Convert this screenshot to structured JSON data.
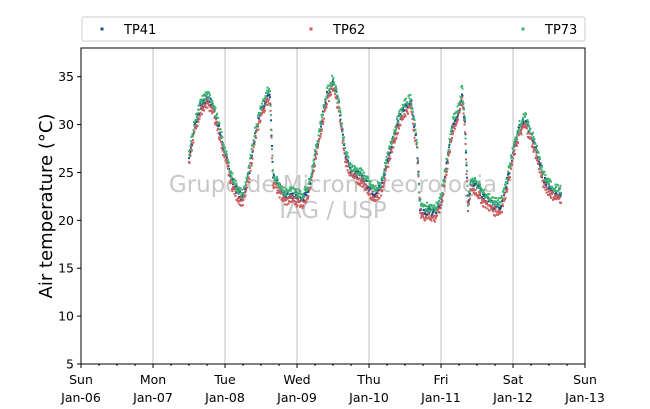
{
  "chart_data": {
    "type": "scatter",
    "title": "",
    "xlabel": "",
    "ylabel": "Air temperature (°C)",
    "ylim": [
      5,
      38
    ],
    "xlim": [
      "2019-01-06",
      "2019-01-13"
    ],
    "grid": "vertical major",
    "legend": "top, horizontal",
    "watermark": [
      "Grupo de Micrometeorologia",
      "IAG / USP"
    ],
    "xticks": [
      {
        "day": "Sun",
        "date": "Jan-06"
      },
      {
        "day": "Mon",
        "date": "Jan-07"
      },
      {
        "day": "Tue",
        "date": "Jan-08"
      },
      {
        "day": "Wed",
        "date": "Jan-09"
      },
      {
        "day": "Thu",
        "date": "Jan-10"
      },
      {
        "day": "Fri",
        "date": "Jan-11"
      },
      {
        "day": "Sat",
        "date": "Jan-12"
      },
      {
        "day": "Sun",
        "date": "Jan-13"
      }
    ],
    "yticks": [
      5,
      10,
      15,
      20,
      25,
      30,
      35
    ],
    "series": [
      {
        "name": "TP41",
        "color": "#1f4e8c",
        "offset": 0.0
      },
      {
        "name": "TP62",
        "color": "#cd5c5c",
        "offset": -0.6
      },
      {
        "name": "TP73",
        "color": "#3cb371",
        "offset": 0.4
      }
    ],
    "base_curve": [
      [
        "2019-01-07T12:00",
        26.5
      ],
      [
        "2019-01-07T14:00",
        30.0
      ],
      [
        "2019-01-07T16:00",
        32.0
      ],
      [
        "2019-01-07T18:00",
        32.8
      ],
      [
        "2019-01-07T20:00",
        32.0
      ],
      [
        "2019-01-07T22:00",
        29.5
      ],
      [
        "2019-01-08T00:00",
        27.0
      ],
      [
        "2019-01-08T02:00",
        24.5
      ],
      [
        "2019-01-08T04:00",
        23.0
      ],
      [
        "2019-01-08T06:00",
        22.3
      ],
      [
        "2019-01-08T08:00",
        25.0
      ],
      [
        "2019-01-08T10:00",
        29.0
      ],
      [
        "2019-01-08T12:00",
        31.5
      ],
      [
        "2019-01-08T14:00",
        33.0
      ],
      [
        "2019-01-08T15:00",
        33.2
      ],
      [
        "2019-01-08T16:00",
        24.5
      ],
      [
        "2019-01-08T18:00",
        23.5
      ],
      [
        "2019-01-08T20:00",
        22.5
      ],
      [
        "2019-01-08T22:00",
        22.8
      ],
      [
        "2019-01-09T00:00",
        22.5
      ],
      [
        "2019-01-09T02:00",
        22.3
      ],
      [
        "2019-01-09T04:00",
        23.5
      ],
      [
        "2019-01-09T06:00",
        26.5
      ],
      [
        "2019-01-09T08:00",
        30.0
      ],
      [
        "2019-01-09T10:00",
        33.0
      ],
      [
        "2019-01-09T12:00",
        34.5
      ],
      [
        "2019-01-09T14:00",
        32.0
      ],
      [
        "2019-01-09T16:00",
        27.0
      ],
      [
        "2019-01-09T18:00",
        25.2
      ],
      [
        "2019-01-09T20:00",
        24.8
      ],
      [
        "2019-01-09T22:00",
        24.5
      ],
      [
        "2019-01-10T00:00",
        23.5
      ],
      [
        "2019-01-10T02:00",
        22.8
      ],
      [
        "2019-01-10T04:00",
        23.5
      ],
      [
        "2019-01-10T06:00",
        26.0
      ],
      [
        "2019-01-10T08:00",
        28.5
      ],
      [
        "2019-01-10T10:00",
        30.5
      ],
      [
        "2019-01-10T12:00",
        31.8
      ],
      [
        "2019-01-10T14:00",
        32.5
      ],
      [
        "2019-01-10T15:00",
        30.0
      ],
      [
        "2019-01-10T16:00",
        28.0
      ],
      [
        "2019-01-10T17:00",
        21.5
      ],
      [
        "2019-01-10T18:00",
        21.0
      ],
      [
        "2019-01-10T20:00",
        21.0
      ],
      [
        "2019-01-10T22:00",
        20.8
      ],
      [
        "2019-01-11T00:00",
        22.0
      ],
      [
        "2019-01-11T02:00",
        26.0
      ],
      [
        "2019-01-11T04:00",
        30.0
      ],
      [
        "2019-01-11T06:00",
        31.5
      ],
      [
        "2019-01-11T07:00",
        33.5
      ],
      [
        "2019-01-11T08:00",
        30.0
      ],
      [
        "2019-01-11T09:00",
        21.5
      ],
      [
        "2019-01-11T10:00",
        24.0
      ],
      [
        "2019-01-11T12:00",
        23.5
      ],
      [
        "2019-01-11T14:00",
        22.5
      ],
      [
        "2019-01-11T16:00",
        22.0
      ],
      [
        "2019-01-11T18:00",
        21.5
      ],
      [
        "2019-01-11T20:00",
        21.5
      ],
      [
        "2019-01-11T22:00",
        24.0
      ],
      [
        "2019-01-12T00:00",
        27.0
      ],
      [
        "2019-01-12T02:00",
        29.5
      ],
      [
        "2019-01-12T04:00",
        30.5
      ],
      [
        "2019-01-12T06:00",
        29.0
      ],
      [
        "2019-01-12T08:00",
        27.0
      ],
      [
        "2019-01-12T10:00",
        24.5
      ],
      [
        "2019-01-12T12:00",
        23.5
      ],
      [
        "2019-01-12T14:00",
        23.0
      ],
      [
        "2019-01-12T16:00",
        22.8
      ]
    ]
  }
}
